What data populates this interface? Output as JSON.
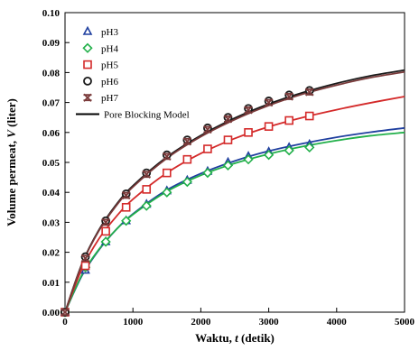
{
  "chart_data": {
    "type": "scatter",
    "xlabel": "Waktu, t (detik)",
    "xlabel_parts": [
      {
        "text": "Waktu, ",
        "italic": false
      },
      {
        "text": "t",
        "italic": true
      },
      {
        "text": " (detik)",
        "italic": false
      }
    ],
    "ylabel": "Volume permeat, V (liter)",
    "ylabel_parts": [
      {
        "text": "Volume permeat, ",
        "italic": false
      },
      {
        "text": "V",
        "italic": true
      },
      {
        "text": " (liter)",
        "italic": false
      }
    ],
    "xlim": [
      0,
      5000
    ],
    "ylim": [
      0,
      0.1
    ],
    "x_ticks": [
      0,
      1000,
      2000,
      3000,
      4000,
      5000
    ],
    "x_tick_labels": [
      "0",
      "1000",
      "2000",
      "3000",
      "4000",
      "5000"
    ],
    "y_ticks": [
      0,
      0.01,
      0.02,
      0.03,
      0.04,
      0.05,
      0.06,
      0.07,
      0.08,
      0.09,
      0.1
    ],
    "y_tick_labels": [
      "0.00",
      "0.01",
      "0.02",
      "0.03",
      "0.04",
      "0.05",
      "0.06",
      "0.07",
      "0.08",
      "0.09",
      "0.10"
    ],
    "grid": false,
    "legend_position": "top-left",
    "x": [
      0,
      300,
      600,
      900,
      1200,
      1500,
      1800,
      2100,
      2400,
      2700,
      3000,
      3300,
      3600
    ],
    "series": [
      {
        "name": "pH3",
        "marker": "triangle",
        "color": "#1f3f9f",
        "values": [
          0,
          0.014,
          0.0235,
          0.0305,
          0.036,
          0.0405,
          0.044,
          0.047,
          0.05,
          0.052,
          0.0535,
          0.055,
          0.056
        ]
      },
      {
        "name": "pH4",
        "marker": "diamond",
        "color": "#22b04a",
        "values": [
          0,
          0.015,
          0.0235,
          0.0305,
          0.0355,
          0.04,
          0.0435,
          0.0465,
          0.049,
          0.051,
          0.0525,
          0.054,
          0.055
        ]
      },
      {
        "name": "pH5",
        "marker": "square",
        "color": "#d42a2a",
        "values": [
          0,
          0.0155,
          0.027,
          0.035,
          0.041,
          0.0465,
          0.051,
          0.0545,
          0.0575,
          0.06,
          0.062,
          0.064,
          0.0655
        ]
      },
      {
        "name": "pH6",
        "marker": "circle",
        "color": "#1a1a1a",
        "values": [
          0,
          0.0185,
          0.0305,
          0.0395,
          0.0465,
          0.0525,
          0.0575,
          0.0615,
          0.065,
          0.068,
          0.0705,
          0.0725,
          0.074
        ]
      },
      {
        "name": "pH7",
        "marker": "star",
        "color": "#7a3a3a",
        "values": [
          0,
          0.018,
          0.03,
          0.039,
          0.046,
          0.052,
          0.057,
          0.061,
          0.0645,
          0.0675,
          0.07,
          0.072,
          0.0735
        ]
      }
    ],
    "model_lines": [
      {
        "series": "pH3",
        "color": "#1f3f9f",
        "x": [
          0,
          250,
          500,
          750,
          1000,
          1500,
          2000,
          2500,
          3000,
          3500,
          4000,
          4500,
          5000
        ],
        "values": [
          0,
          0.0122,
          0.0208,
          0.0275,
          0.0328,
          0.0408,
          0.0463,
          0.0505,
          0.0538,
          0.0563,
          0.0584,
          0.0601,
          0.0615
        ]
      },
      {
        "series": "pH4",
        "color": "#22b04a",
        "x": [
          0,
          250,
          500,
          750,
          1000,
          1500,
          2000,
          2500,
          3000,
          3500,
          4000,
          4500,
          5000
        ],
        "values": [
          0,
          0.0125,
          0.021,
          0.0275,
          0.0326,
          0.0403,
          0.0457,
          0.0497,
          0.0528,
          0.0553,
          0.0573,
          0.0589,
          0.06
        ]
      },
      {
        "series": "pH5",
        "color": "#d42a2a",
        "x": [
          0,
          250,
          500,
          750,
          1000,
          1500,
          2000,
          2500,
          3000,
          3500,
          4000,
          4500,
          5000
        ],
        "values": [
          0,
          0.0145,
          0.0245,
          0.0318,
          0.0377,
          0.0465,
          0.053,
          0.058,
          0.0619,
          0.065,
          0.0676,
          0.0699,
          0.072
        ]
      },
      {
        "series": "pH6",
        "color": "#1a1a1a",
        "x": [
          0,
          250,
          500,
          750,
          1000,
          1500,
          2000,
          2500,
          3000,
          3500,
          4000,
          4500,
          5000
        ],
        "values": [
          0,
          0.0162,
          0.0275,
          0.0358,
          0.0422,
          0.0518,
          0.059,
          0.0648,
          0.0695,
          0.0733,
          0.0764,
          0.0789,
          0.0808
        ]
      },
      {
        "series": "pH7",
        "color": "#7a3a3a",
        "x": [
          0,
          250,
          500,
          750,
          1000,
          1500,
          2000,
          2500,
          3000,
          3500,
          4000,
          4500,
          5000
        ],
        "values": [
          0,
          0.016,
          0.0272,
          0.0354,
          0.0418,
          0.0514,
          0.0586,
          0.0643,
          0.069,
          0.0728,
          0.0758,
          0.0783,
          0.0802
        ]
      }
    ],
    "legend": {
      "entries": [
        {
          "label": "pH3",
          "marker": "triangle",
          "color": "#1f3f9f"
        },
        {
          "label": "pH4",
          "marker": "diamond",
          "color": "#22b04a"
        },
        {
          "label": "pH5",
          "marker": "square",
          "color": "#d42a2a"
        },
        {
          "label": "pH6",
          "marker": "circle",
          "color": "#1a1a1a"
        },
        {
          "label": "pH7",
          "marker": "star",
          "color": "#7a3a3a"
        },
        {
          "label": "Pore Blocking Model",
          "marker": "line",
          "color": "#000000"
        }
      ]
    }
  }
}
